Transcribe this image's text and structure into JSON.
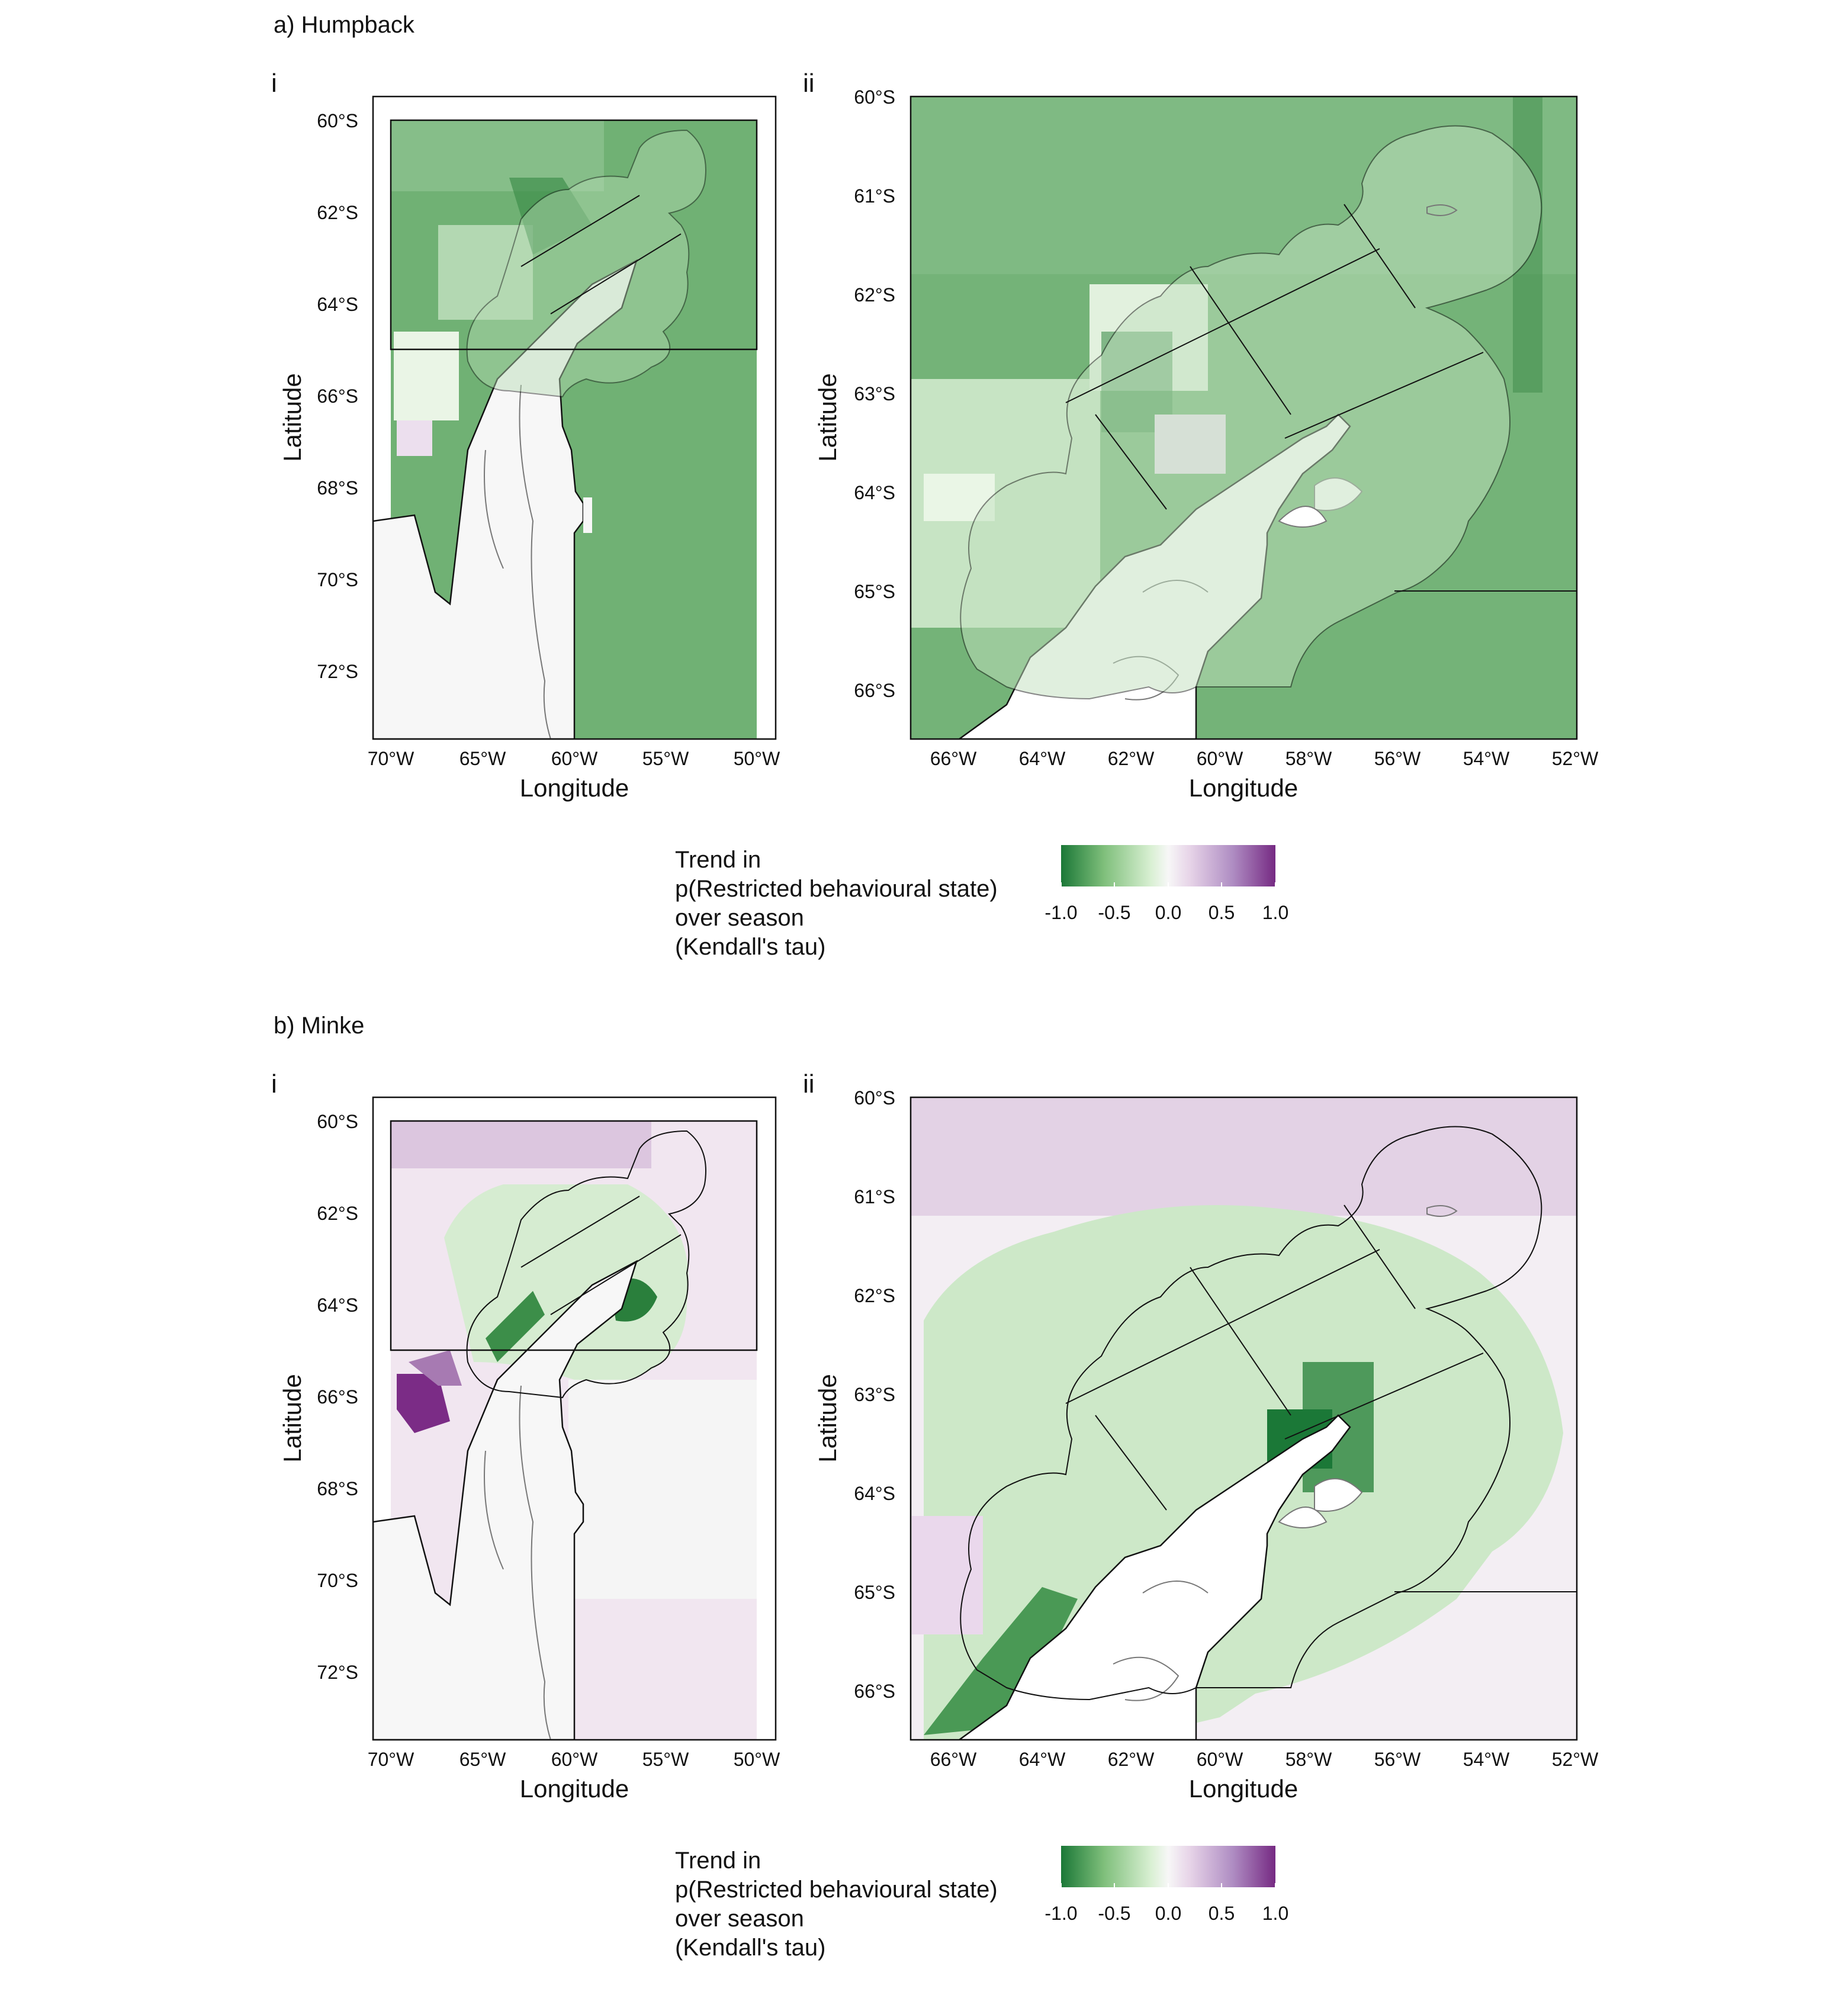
{
  "figure": {
    "panels": [
      {
        "label": "a) Humpback",
        "sub_i": "i",
        "sub_ii": "ii",
        "map_i": {
          "lat_ticks": [
            "60°S",
            "62°S",
            "64°S",
            "66°S",
            "68°S",
            "70°S",
            "72°S"
          ],
          "lon_ticks": [
            "70°W",
            "65°W",
            "60°W",
            "55°W",
            "50°W"
          ],
          "xlabel": "Longitude",
          "ylabel": "Latitude",
          "ocean_color": "#70b174"
        },
        "map_ii": {
          "lat_ticks": [
            "60°S",
            "61°S",
            "62°S",
            "63°S",
            "64°S",
            "65°S",
            "66°S"
          ],
          "lon_ticks": [
            "66°W",
            "64°W",
            "62°W",
            "60°W",
            "58°W",
            "56°W",
            "54°W",
            "52°W"
          ],
          "xlabel": "Longitude",
          "ylabel": "Latitude",
          "ocean_color": "#74b378"
        }
      },
      {
        "label": "b) Minke",
        "sub_i": "i",
        "sub_ii": "ii",
        "map_i": {
          "lat_ticks": [
            "60°S",
            "62°S",
            "64°S",
            "66°S",
            "68°S",
            "70°S",
            "72°S"
          ],
          "lon_ticks": [
            "70°W",
            "65°W",
            "60°W",
            "55°W",
            "50°W"
          ],
          "xlabel": "Longitude",
          "ylabel": "Latitude",
          "ocean_color": "#f1e6f0"
        },
        "map_ii": {
          "lat_ticks": [
            "60°S",
            "61°S",
            "62°S",
            "63°S",
            "64°S",
            "65°S",
            "66°S"
          ],
          "lon_ticks": [
            "66°W",
            "64°W",
            "62°W",
            "60°W",
            "58°W",
            "56°W",
            "54°W",
            "52°W"
          ],
          "xlabel": "Longitude",
          "ylabel": "Latitude",
          "ocean_color": "#f3eef3"
        }
      }
    ],
    "legend": {
      "title_lines": [
        "Trend in",
        "p(Restricted behavioural state)",
        "over season",
        "(Kendall's tau)"
      ],
      "ticks": [
        "-1.0",
        "-0.5",
        "0.0",
        "0.5",
        "1.0"
      ],
      "colors": [
        "#1b7837",
        "#7fbf7b",
        "#d9f0d3",
        "#f7f7f7",
        "#e7d4e8",
        "#af8dc3",
        "#762a83"
      ]
    }
  }
}
